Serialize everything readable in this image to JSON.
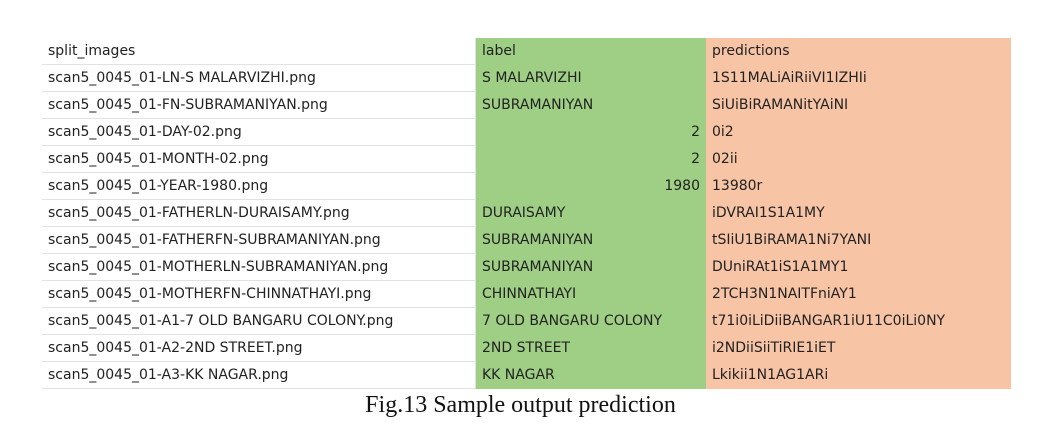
{
  "table": {
    "header": [
      "split_images",
      "label",
      "predictions"
    ],
    "rows": [
      [
        "scan5_0045_01-LN-S MALARVIZHI.png",
        "S MALARVIZHI",
        "1S11MALiAiRiiVI1IZHIi"
      ],
      [
        "scan5_0045_01-FN-SUBRAMANIYAN.png",
        "SUBRAMANIYAN",
        "SiUiBiRAMANitYAiNI"
      ],
      [
        "scan5_0045_01-DAY-02.png",
        2,
        "0i2"
      ],
      [
        "scan5_0045_01-MONTH-02.png",
        2,
        "02ii"
      ],
      [
        "scan5_0045_01-YEAR-1980.png",
        1980,
        "13980r"
      ],
      [
        "scan5_0045_01-FATHERLN-DURAISAMY.png",
        "DURAISAMY",
        "iDVRAI1S1A1MY"
      ],
      [
        "scan5_0045_01-FATHERFN-SUBRAMANIYAN.png",
        "SUBRAMANIYAN",
        "tSIiU1BiRAMA1Ni7YANI"
      ],
      [
        "scan5_0045_01-MOTHERLN-SUBRAMANIYAN.png",
        "SUBRAMANIYAN",
        "DUniRAt1iS1A1MY1"
      ],
      [
        "scan5_0045_01-MOTHERFN-CHINNATHAYI.png",
        "CHINNATHAYI",
        "2TCH3N1NAITFniAY1"
      ],
      [
        "scan5_0045_01-A1-7 OLD BANGARU COLONY.png",
        "7 OLD BANGARU COLONY",
        "t71i0iLiDiiBANGAR1iU11C0iLi0NY"
      ],
      [
        "scan5_0045_01-A2-2ND STREET.png",
        "2ND STREET",
        "i2NDiiSiiTiRIE1iET"
      ],
      [
        "scan5_0045_01-A3-KK NAGAR.png",
        "KK NAGAR",
        "Lkikii1N1AG1ARi"
      ]
    ]
  },
  "caption": "Fig.13 Sample output prediction"
}
